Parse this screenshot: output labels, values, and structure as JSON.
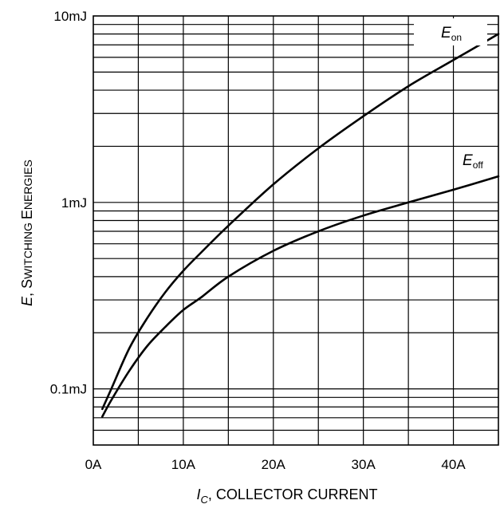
{
  "chart_data": {
    "type": "line",
    "x_axis": {
      "label_var": "I",
      "label_sub": "C",
      "label_rest": ", COLLECTOR CURRENT",
      "xlim": [
        0,
        45
      ],
      "ticks": [
        0,
        10,
        20,
        30,
        40
      ],
      "tick_labels": [
        "0A",
        "10A",
        "20A",
        "30A",
        "40A"
      ],
      "grid": true
    },
    "y_axis": {
      "label_var": "E",
      "label_rest_1": ", S",
      "label_rest_2": "WITCHING ",
      "label_rest_3": "E",
      "label_rest_4": "NERGIES",
      "scale": "log",
      "ylim": [
        0.05,
        10
      ],
      "ticks": [
        0.1,
        1,
        10
      ],
      "tick_labels": [
        "0.1mJ",
        "1mJ",
        "10mJ"
      ],
      "grid": true
    },
    "series": [
      {
        "name_main": "E",
        "name_sub": "on",
        "x": [
          1,
          2,
          4,
          6,
          8,
          10,
          12,
          15,
          20,
          25,
          30,
          35,
          40,
          45
        ],
        "y": [
          0.078,
          0.1,
          0.165,
          0.24,
          0.33,
          0.43,
          0.54,
          0.75,
          1.25,
          1.95,
          2.9,
          4.2,
          5.8,
          8.0
        ]
      },
      {
        "name_main": "E",
        "name_sub": "off",
        "x": [
          1,
          2,
          4,
          6,
          8,
          10,
          12,
          15,
          20,
          25,
          30,
          35,
          40,
          45
        ],
        "y": [
          0.071,
          0.087,
          0.125,
          0.17,
          0.215,
          0.265,
          0.31,
          0.4,
          0.55,
          0.7,
          0.85,
          1.0,
          1.17,
          1.38
        ]
      }
    ]
  }
}
